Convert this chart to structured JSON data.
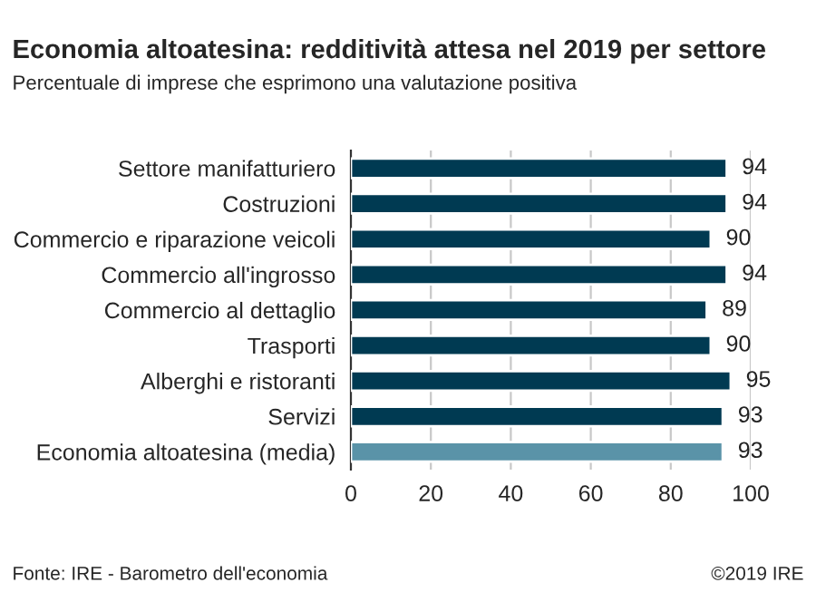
{
  "chart_data": {
    "type": "bar",
    "orientation": "horizontal",
    "title": "Economia altoatesina: redditività attesa nel 2019 per settore",
    "subtitle": "Percentuale di imprese che esprimono una valutazione positiva",
    "categories": [
      "Settore manifatturiero",
      "Costruzioni",
      "Commercio e riparazione veicoli",
      "Commercio all'ingrosso",
      "Commercio al dettaglio",
      "Trasporti",
      "Alberghi e ristoranti",
      "Servizi",
      "Economia altoatesina (media)"
    ],
    "values": [
      94,
      94,
      90,
      94,
      89,
      90,
      95,
      93,
      93
    ],
    "colors": [
      "#003a52",
      "#003a52",
      "#003a52",
      "#003a52",
      "#003a52",
      "#003a52",
      "#003a52",
      "#003a52",
      "#5a93a8"
    ],
    "xlim": [
      0,
      100
    ],
    "xticks": [
      0,
      20,
      40,
      60,
      80,
      100
    ],
    "grid": "x",
    "data_labels": true,
    "annotations": [
      "Fonte: IRE - Barometro dell'economia",
      "©2019 IRE"
    ]
  }
}
